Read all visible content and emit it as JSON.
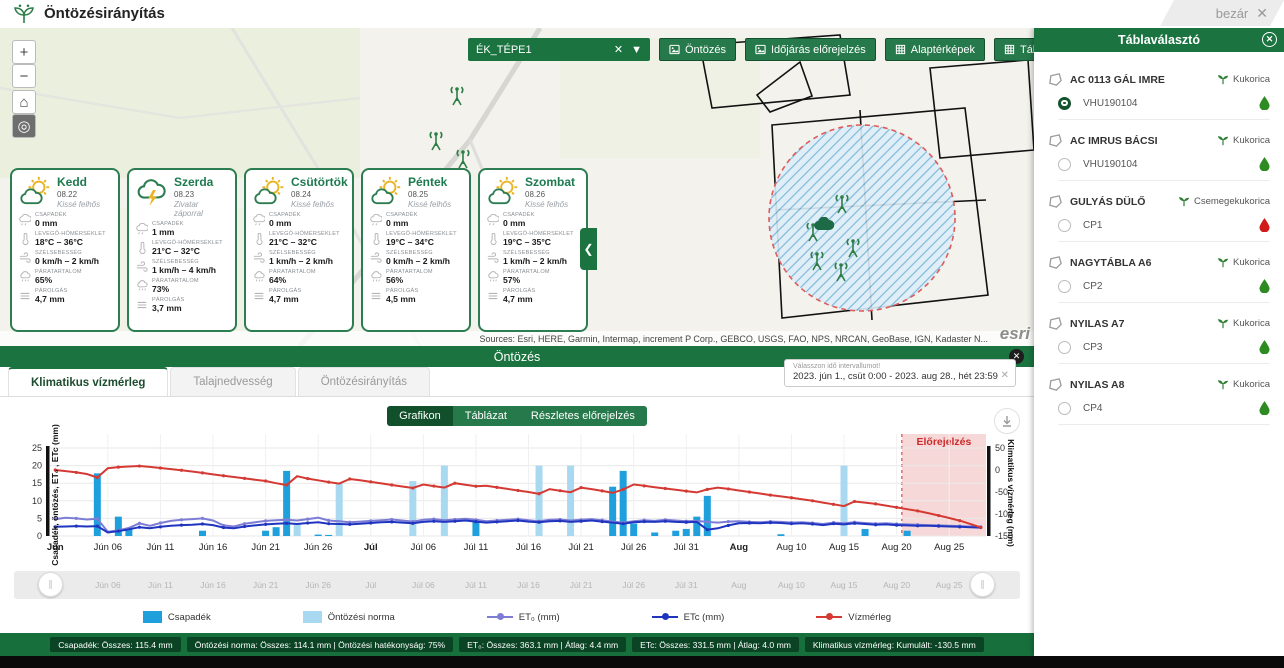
{
  "app": {
    "title": "Öntözésirányítás",
    "close_label": "bezár"
  },
  "map": {
    "dropdown": {
      "value": "ÉK_TÉPE1"
    },
    "buttons": [
      {
        "label": "Öntözés",
        "icon": "image-icon"
      },
      {
        "label": "Időjárás előrejelzés",
        "icon": "image-icon"
      },
      {
        "label": "Alaptérképek",
        "icon": "grid-icon"
      },
      {
        "label": "Táblaválasztó",
        "icon": "grid-icon"
      }
    ],
    "zoom_in": "+",
    "zoom_out": "−",
    "home": "⌂",
    "locate": "◎",
    "collapse_arrow": "❮",
    "attribution": "Sources: Esri, HERE, Garmin, Intermap, increment P Corp., GEBCO, USGS, FAO, NPS, NRCAN, GeoBase, IGN, Kadaster N...",
    "esri_label": "esri",
    "stations": [
      [
        457,
        67
      ],
      [
        436,
        112
      ],
      [
        463,
        130
      ],
      [
        842,
        175
      ],
      [
        813,
        203
      ],
      [
        853,
        219
      ],
      [
        817,
        232
      ],
      [
        841,
        243
      ]
    ],
    "cloud_marker": [
      824,
      196
    ]
  },
  "weather": {
    "metric_labels": {
      "rain": "Csapadék",
      "temp": "Levegő-hőmérséklet",
      "wind": "Szélsebesség",
      "humidity": "Páratartalom",
      "evap": "Párolgás"
    },
    "cards": [
      {
        "day": "Kedd",
        "date": "08.22",
        "condition": "Kissé felhős",
        "icon": "sun-cloud",
        "rain": "0 mm",
        "temp": "18°C – 36°C",
        "wind": "0 km/h – 2 km/h",
        "humidity": "65%",
        "evap": "4,7 mm"
      },
      {
        "day": "Szerda",
        "date": "08.23",
        "condition": "Zivatar záporral",
        "icon": "storm",
        "rain": "1 mm",
        "temp": "21°C – 32°C",
        "wind": "1 km/h – 4 km/h",
        "humidity": "73%",
        "evap": "3,7 mm"
      },
      {
        "day": "Csütörtök",
        "date": "08.24",
        "condition": "Kissé felhős",
        "icon": "sun-cloud",
        "rain": "0 mm",
        "temp": "21°C – 32°C",
        "wind": "1 km/h – 2 km/h",
        "humidity": "64%",
        "evap": "4,7 mm"
      },
      {
        "day": "Péntek",
        "date": "08.25",
        "condition": "Kissé felhős",
        "icon": "sun-cloud",
        "rain": "0 mm",
        "temp": "19°C – 34°C",
        "wind": "0 km/h – 2 km/h",
        "humidity": "56%",
        "evap": "4,5 mm"
      },
      {
        "day": "Szombat",
        "date": "08.26",
        "condition": "Kissé felhős",
        "icon": "sun-cloud",
        "rain": "0 mm",
        "temp": "19°C – 35°C",
        "wind": "1 km/h – 2 km/h",
        "humidity": "57%",
        "evap": "4,7 mm"
      }
    ]
  },
  "sidebar": {
    "title": "Táblaválasztó",
    "items": [
      {
        "name": "AC 0113 GÁL IMRE",
        "crop": "Kukorica",
        "code": "VHU190104",
        "selected": true,
        "droplet": "green"
      },
      {
        "name": "AC IMRUS BÁCSI",
        "crop": "Kukorica",
        "code": "VHU190104",
        "selected": false,
        "droplet": "green"
      },
      {
        "name": "GULYÁS DÜLŐ",
        "crop": "Csemegekukorica",
        "code": "CP1",
        "selected": false,
        "droplet": "red"
      },
      {
        "name": "NAGYTÁBLA A6",
        "crop": "Kukorica",
        "code": "CP2",
        "selected": false,
        "droplet": "green"
      },
      {
        "name": "NYILAS A7",
        "crop": "Kukorica",
        "code": "CP3",
        "selected": false,
        "droplet": "green"
      },
      {
        "name": "NYILAS A8",
        "crop": "Kukorica",
        "code": "CP4",
        "selected": false,
        "droplet": "green"
      }
    ]
  },
  "panel": {
    "title": "Öntözés",
    "tabs": [
      {
        "label": "Klimatikus vízmérleg",
        "active": true
      },
      {
        "label": "Talajnedvesség",
        "active": false
      },
      {
        "label": "Öntözésirányítás",
        "active": false
      }
    ],
    "date_range": {
      "label": "Válasszon idő intervallumot!",
      "value": "2023. jún 1., csüt 0:00 - 2023. aug 28., hét 23:59"
    },
    "view_buttons": [
      {
        "label": "Grafikon",
        "active": true
      },
      {
        "label": "Táblázat",
        "active": false
      },
      {
        "label": "Részletes előrejelzés",
        "active": false
      }
    ],
    "legend": [
      {
        "label": "Csapadék",
        "type": "bar",
        "color": "#1f9fdb"
      },
      {
        "label": "Öntözési norma",
        "type": "bar",
        "color": "#a8d9f0"
      },
      {
        "label": "ET₀ (mm)",
        "type": "line",
        "color": "#7d7dd6"
      },
      {
        "label": "ETc (mm)",
        "type": "line",
        "color": "#1f35c0"
      },
      {
        "label": "Vízmérleg",
        "type": "line",
        "color": "#d43a33"
      }
    ],
    "stats": [
      "Csapadék: Összes: 115.4 mm",
      "Öntözési norma: Összes: 114.1 mm | Öntözési hatékonyság: 75%",
      "ET₀: Összes: 363.1 mm | Átlag: 4.4 mm",
      "ETc: Összes: 331.5 mm | Átlag: 4.0 mm",
      "Klimatikus vízmérleg: Kumulált: -130.5 mm"
    ]
  },
  "chart_data": {
    "type": "bar+line composite, dual y-axis, daily 2023-06-01 .. 2023-08-28 (89 days)",
    "ylabel_left": "Csapadék, öntözés, ET₀ , ETc (mm)",
    "ylabel_right": "Klimatikus vízmérleg (mm)",
    "ylim_left": [
      0,
      25
    ],
    "ylim_right": [
      -150,
      50
    ],
    "yticks_left": [
      0,
      5,
      10,
      15,
      20,
      25
    ],
    "yticks_right": [
      50,
      0,
      -50,
      -100,
      -150
    ],
    "forecast": {
      "label": "Előrejelzés",
      "start_index": 81,
      "color": "#f3c3c3"
    },
    "xticks": [
      {
        "i": 0,
        "label": "Jún",
        "bold": true
      },
      {
        "i": 5,
        "label": "Jún 06"
      },
      {
        "i": 10,
        "label": "Jún 11"
      },
      {
        "i": 15,
        "label": "Jún 16"
      },
      {
        "i": 20,
        "label": "Jún 21"
      },
      {
        "i": 25,
        "label": "Jún 26"
      },
      {
        "i": 30,
        "label": "Júl",
        "bold": true
      },
      {
        "i": 35,
        "label": "Júl 06"
      },
      {
        "i": 40,
        "label": "Júl 11"
      },
      {
        "i": 45,
        "label": "Júl 16"
      },
      {
        "i": 50,
        "label": "Júl 21"
      },
      {
        "i": 55,
        "label": "Júl 26"
      },
      {
        "i": 60,
        "label": "Júl 31"
      },
      {
        "i": 65,
        "label": "Aug",
        "bold": true
      },
      {
        "i": 70,
        "label": "Aug 10"
      },
      {
        "i": 75,
        "label": "Aug 15"
      },
      {
        "i": 80,
        "label": "Aug 20"
      },
      {
        "i": 85,
        "label": "Aug 25"
      }
    ],
    "series": [
      {
        "name": "Csapadék",
        "type": "bar",
        "axis": "left",
        "color": "#1f9fdb",
        "values": [
          0,
          0,
          0,
          0,
          17.8,
          0,
          5.5,
          2.0,
          0,
          0,
          0,
          0,
          0,
          0,
          1.5,
          0,
          0,
          0,
          0,
          0,
          1.5,
          2.5,
          18.5,
          0,
          0,
          0.4,
          0.3,
          0,
          0,
          0,
          0,
          0,
          0,
          0,
          0,
          0,
          0,
          0,
          0,
          0,
          4.0,
          0,
          0,
          0,
          0,
          0,
          0,
          0,
          0,
          0,
          0,
          0,
          0,
          14.0,
          18.5,
          3.5,
          0,
          1.0,
          0,
          1.5,
          2.0,
          5.5,
          11.4,
          0,
          0,
          0,
          0,
          0,
          0,
          0.5,
          0,
          0,
          0,
          0,
          0,
          0,
          0,
          2.0,
          0,
          0,
          0,
          1.5,
          0,
          0,
          0,
          0,
          0,
          0,
          0
        ]
      },
      {
        "name": "Öntözési norma",
        "type": "bar",
        "axis": "left",
        "color": "#a8d9f0",
        "values": [
          0,
          0,
          0,
          0,
          0,
          0,
          0,
          0,
          0,
          0,
          0,
          0,
          0,
          0,
          0,
          0,
          0,
          0,
          0,
          0,
          0,
          0,
          0,
          3.5,
          0,
          0,
          0,
          15.0,
          0,
          0,
          0,
          0,
          0,
          0,
          15.6,
          0,
          0,
          20.0,
          0,
          0,
          0,
          0,
          0,
          0,
          0,
          0,
          20.0,
          0,
          0,
          20.0,
          0,
          0,
          0,
          0,
          0,
          0,
          0,
          0,
          0,
          0,
          0,
          0,
          0,
          0,
          0,
          0,
          0,
          0,
          0,
          0,
          0,
          0,
          0,
          0,
          0,
          20.0,
          0,
          0,
          0,
          0,
          0,
          0,
          0,
          0,
          0,
          0,
          0,
          0,
          0,
          0
        ]
      },
      {
        "name": "ET₀ (mm)",
        "type": "line",
        "axis": "left",
        "color": "#7d7dd6",
        "values": [
          4.8,
          5.2,
          5.0,
          4.7,
          4.9,
          1.2,
          1.6,
          2.3,
          3.6,
          2.9,
          3.7,
          4.3,
          4.6,
          4.8,
          5.0,
          4.4,
          3.0,
          2.7,
          3.5,
          3.9,
          4.3,
          4.5,
          4.6,
          4.4,
          4.8,
          5.2,
          4.4,
          4.2,
          3.9,
          4.1,
          4.3,
          4.5,
          4.7,
          4.4,
          4.1,
          4.6,
          4.8,
          4.5,
          4.7,
          4.9,
          4.6,
          4.2,
          4.4,
          4.6,
          4.8,
          4.5,
          4.2,
          4.6,
          4.7,
          4.4,
          4.6,
          4.8,
          4.5,
          4.1,
          3.8,
          4.2,
          4.5,
          4.3,
          4.6,
          4.4,
          4.2,
          4.3,
          4.0,
          3.8,
          4.1,
          4.2,
          4.0,
          3.9,
          4.1,
          4.0,
          3.8,
          3.9,
          3.7,
          3.4,
          3.8,
          3.6,
          3.9,
          3.7,
          3.5,
          3.6,
          3.4,
          3.3,
          3.2,
          3.1,
          3.0,
          2.9,
          2.8,
          2.7,
          2.6
        ]
      },
      {
        "name": "ETc (mm)",
        "type": "line",
        "axis": "left",
        "color": "#1f35c0",
        "values": [
          2.6,
          2.7,
          2.8,
          2.7,
          2.8,
          1.0,
          1.4,
          1.9,
          2.5,
          2.2,
          2.6,
          2.9,
          3.1,
          3.2,
          3.4,
          3.1,
          2.4,
          2.2,
          2.7,
          3.0,
          3.3,
          3.5,
          3.6,
          3.4,
          3.7,
          3.9,
          3.5,
          3.4,
          3.3,
          3.5,
          3.7,
          3.9,
          4.0,
          3.8,
          3.6,
          4.0,
          4.2,
          4.0,
          4.2,
          4.4,
          4.1,
          3.8,
          4.0,
          4.2,
          4.4,
          4.1,
          3.9,
          4.2,
          4.3,
          4.0,
          4.2,
          4.4,
          4.1,
          3.8,
          3.5,
          3.9,
          4.1,
          4.0,
          4.2,
          4.0,
          3.9,
          4.0,
          1.8,
          2.2,
          3.0,
          3.6,
          3.7,
          3.6,
          3.8,
          3.7,
          3.5,
          3.6,
          3.4,
          3.1,
          3.5,
          3.3,
          3.6,
          3.4,
          3.2,
          3.3,
          3.1,
          3.0,
          2.9,
          2.9,
          2.8,
          2.7,
          2.6,
          2.5,
          2.4
        ]
      },
      {
        "name": "Vízmérleg",
        "type": "line",
        "axis": "right",
        "color": "#d43a33",
        "values": [
          0,
          -2.5,
          -5.5,
          -9,
          -17,
          4,
          6.5,
          8,
          9,
          7,
          4.5,
          2,
          -0.5,
          -3.5,
          -6.5,
          -10,
          -13,
          -16,
          -19,
          -22,
          -25,
          -30,
          -34,
          -14,
          -19.5,
          -23.5,
          -27.5,
          -31,
          -20.5,
          -23.5,
          -27,
          -30.5,
          -34,
          -37.5,
          -41,
          -33,
          -36.5,
          -40,
          -30,
          -33.5,
          -37,
          -36,
          -39.5,
          -43,
          -46.5,
          -50,
          -54,
          -43.5,
          -47,
          -50.5,
          -40,
          -43.5,
          -47.5,
          -52,
          -44,
          -33,
          -36,
          -39,
          -42,
          -45,
          -48,
          -51,
          -44,
          -40,
          -43,
          -46.5,
          -50,
          -53.5,
          -57,
          -60,
          -63,
          -66.5,
          -70,
          -74,
          -78,
          -82,
          -71.5,
          -74,
          -77,
          -81,
          -85,
          -89,
          -93,
          -98,
          -103.5,
          -109,
          -115,
          -122.5,
          -130.5
        ]
      }
    ]
  }
}
